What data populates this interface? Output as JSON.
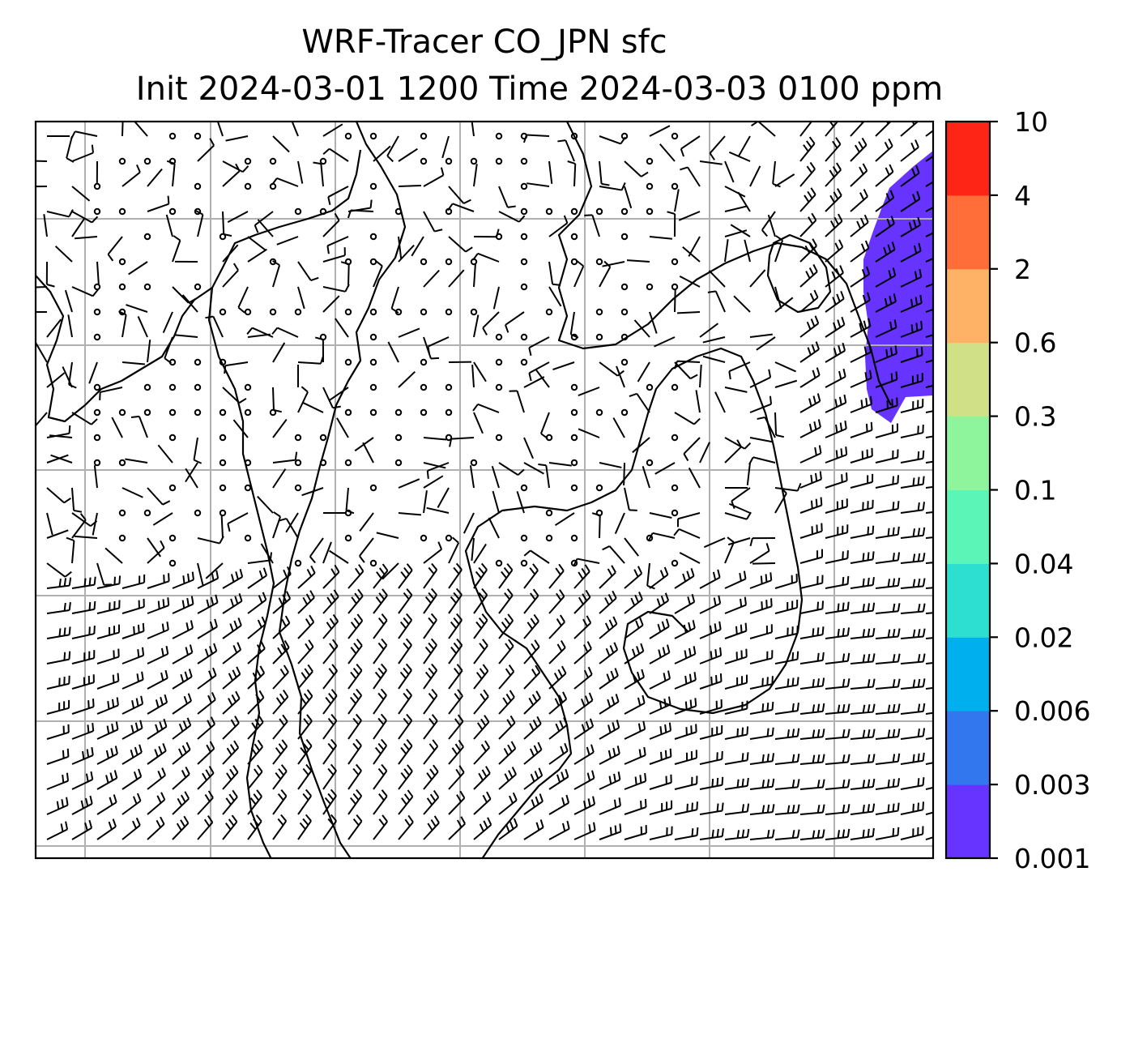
{
  "title_line1": "WRF-Tracer CO_JPN sfc",
  "title_line2": "Init 2024-03-01 1200 Time 2024-03-03 0100 ppm",
  "chart_data": {
    "type": "heatmap",
    "field": "surface CO tracer concentration with wind barbs",
    "units": "ppm",
    "colorbar": {
      "levels": [
        "0.001",
        "0.003",
        "0.006",
        "0.02",
        "0.04",
        "0.1",
        "0.3",
        "0.6",
        "2",
        "4",
        "10"
      ],
      "colors": [
        "#6633ff",
        "#3377ee",
        "#00b0ee",
        "#2ddfd0",
        "#5cf5b8",
        "#8ef59c",
        "#cfe087",
        "#fdb265",
        "#ff6e38",
        "#ff2516"
      ]
    },
    "plume": {
      "level": "0.001",
      "color": "#6633ff",
      "location": "upper-right edge of map"
    },
    "gridlines": true,
    "overlay": "wind barbs and calm-wind circles over coastline map"
  }
}
